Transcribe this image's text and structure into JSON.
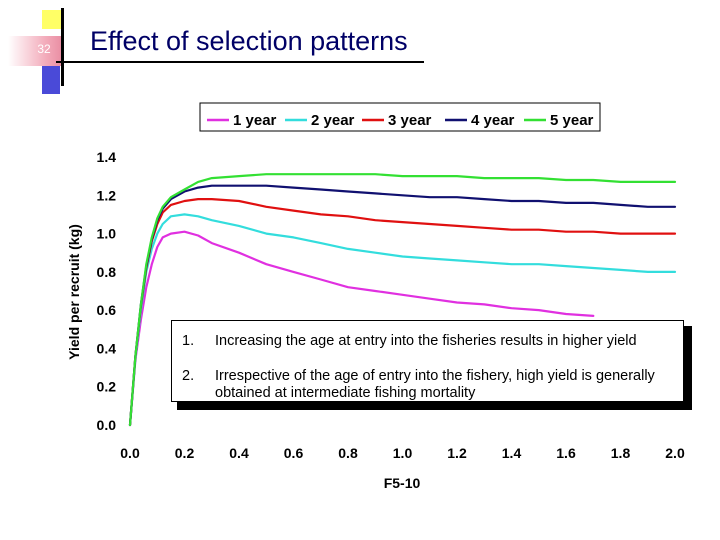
{
  "slide": {
    "number": "32",
    "title": "Effect of selection patterns"
  },
  "colors": {
    "title": "#000066",
    "series": [
      "#e030e0",
      "#33dddd",
      "#e01010",
      "#101070",
      "#33e033"
    ]
  },
  "chart_data": {
    "type": "line",
    "title": "",
    "xlabel": "F5-10",
    "ylabel": "Yield per recruit (kg)",
    "xlim": [
      0.0,
      2.0
    ],
    "ylim": [
      0.0,
      1.4
    ],
    "x_ticks": [
      "0.0",
      "0.2",
      "0.4",
      "0.6",
      "0.8",
      "1.0",
      "1.2",
      "1.4",
      "1.6",
      "1.8",
      "2.0"
    ],
    "y_ticks": [
      "0.0",
      "0.2",
      "0.4",
      "0.6",
      "0.8",
      "1.0",
      "1.2",
      "1.4"
    ],
    "legend_position": "top",
    "grid": false,
    "series": [
      {
        "name": "1 year",
        "color": "#e030e0",
        "points": [
          [
            0,
            0
          ],
          [
            0.02,
            0.34
          ],
          [
            0.04,
            0.55
          ],
          [
            0.06,
            0.72
          ],
          [
            0.08,
            0.84
          ],
          [
            0.1,
            0.93
          ],
          [
            0.12,
            0.98
          ],
          [
            0.15,
            1.0
          ],
          [
            0.2,
            1.01
          ],
          [
            0.25,
            0.99
          ],
          [
            0.3,
            0.95
          ],
          [
            0.4,
            0.9
          ],
          [
            0.5,
            0.84
          ],
          [
            0.6,
            0.8
          ],
          [
            0.7,
            0.76
          ],
          [
            0.8,
            0.72
          ],
          [
            0.9,
            0.7
          ],
          [
            1.0,
            0.68
          ],
          [
            1.1,
            0.66
          ],
          [
            1.2,
            0.64
          ],
          [
            1.3,
            0.63
          ],
          [
            1.4,
            0.61
          ],
          [
            1.5,
            0.6
          ],
          [
            1.6,
            0.58
          ],
          [
            1.7,
            0.57
          ]
        ]
      },
      {
        "name": "2 year",
        "color": "#33dddd",
        "points": [
          [
            0,
            0
          ],
          [
            0.02,
            0.35
          ],
          [
            0.04,
            0.6
          ],
          [
            0.06,
            0.8
          ],
          [
            0.08,
            0.92
          ],
          [
            0.1,
            1.0
          ],
          [
            0.12,
            1.05
          ],
          [
            0.15,
            1.09
          ],
          [
            0.2,
            1.1
          ],
          [
            0.25,
            1.09
          ],
          [
            0.3,
            1.07
          ],
          [
            0.4,
            1.04
          ],
          [
            0.5,
            1.0
          ],
          [
            0.6,
            0.98
          ],
          [
            0.7,
            0.95
          ],
          [
            0.8,
            0.92
          ],
          [
            0.9,
            0.9
          ],
          [
            1.0,
            0.88
          ],
          [
            1.1,
            0.87
          ],
          [
            1.2,
            0.86
          ],
          [
            1.3,
            0.85
          ],
          [
            1.4,
            0.84
          ],
          [
            1.5,
            0.84
          ],
          [
            1.6,
            0.83
          ],
          [
            1.7,
            0.82
          ],
          [
            1.8,
            0.81
          ],
          [
            1.9,
            0.8
          ],
          [
            2.0,
            0.8
          ]
        ]
      },
      {
        "name": "3 year",
        "color": "#e01010",
        "points": [
          [
            0,
            0
          ],
          [
            0.02,
            0.36
          ],
          [
            0.04,
            0.62
          ],
          [
            0.06,
            0.82
          ],
          [
            0.08,
            0.96
          ],
          [
            0.1,
            1.05
          ],
          [
            0.12,
            1.11
          ],
          [
            0.15,
            1.15
          ],
          [
            0.2,
            1.17
          ],
          [
            0.25,
            1.18
          ],
          [
            0.3,
            1.18
          ],
          [
            0.4,
            1.17
          ],
          [
            0.5,
            1.14
          ],
          [
            0.6,
            1.12
          ],
          [
            0.7,
            1.1
          ],
          [
            0.8,
            1.09
          ],
          [
            0.9,
            1.07
          ],
          [
            1.0,
            1.06
          ],
          [
            1.1,
            1.05
          ],
          [
            1.2,
            1.04
          ],
          [
            1.3,
            1.03
          ],
          [
            1.4,
            1.02
          ],
          [
            1.5,
            1.02
          ],
          [
            1.6,
            1.01
          ],
          [
            1.7,
            1.01
          ],
          [
            1.8,
            1.0
          ],
          [
            1.9,
            1.0
          ],
          [
            2.0,
            1.0
          ]
        ]
      },
      {
        "name": "4 year",
        "color": "#101070",
        "points": [
          [
            0,
            0
          ],
          [
            0.02,
            0.36
          ],
          [
            0.04,
            0.63
          ],
          [
            0.06,
            0.83
          ],
          [
            0.08,
            0.97
          ],
          [
            0.1,
            1.07
          ],
          [
            0.12,
            1.13
          ],
          [
            0.15,
            1.18
          ],
          [
            0.2,
            1.22
          ],
          [
            0.25,
            1.24
          ],
          [
            0.3,
            1.25
          ],
          [
            0.4,
            1.25
          ],
          [
            0.5,
            1.25
          ],
          [
            0.6,
            1.24
          ],
          [
            0.7,
            1.23
          ],
          [
            0.8,
            1.22
          ],
          [
            0.9,
            1.21
          ],
          [
            1.0,
            1.2
          ],
          [
            1.1,
            1.19
          ],
          [
            1.2,
            1.19
          ],
          [
            1.3,
            1.18
          ],
          [
            1.4,
            1.17
          ],
          [
            1.5,
            1.17
          ],
          [
            1.6,
            1.16
          ],
          [
            1.7,
            1.16
          ],
          [
            1.8,
            1.15
          ],
          [
            1.9,
            1.14
          ],
          [
            2.0,
            1.14
          ]
        ]
      },
      {
        "name": "5 year",
        "color": "#33e033",
        "points": [
          [
            0,
            0
          ],
          [
            0.02,
            0.36
          ],
          [
            0.04,
            0.63
          ],
          [
            0.06,
            0.84
          ],
          [
            0.08,
            0.98
          ],
          [
            0.1,
            1.08
          ],
          [
            0.12,
            1.14
          ],
          [
            0.15,
            1.19
          ],
          [
            0.2,
            1.23
          ],
          [
            0.25,
            1.27
          ],
          [
            0.3,
            1.29
          ],
          [
            0.4,
            1.3
          ],
          [
            0.5,
            1.31
          ],
          [
            0.6,
            1.31
          ],
          [
            0.7,
            1.31
          ],
          [
            0.8,
            1.31
          ],
          [
            0.9,
            1.31
          ],
          [
            1.0,
            1.3
          ],
          [
            1.1,
            1.3
          ],
          [
            1.2,
            1.3
          ],
          [
            1.3,
            1.29
          ],
          [
            1.4,
            1.29
          ],
          [
            1.5,
            1.29
          ],
          [
            1.6,
            1.28
          ],
          [
            1.7,
            1.28
          ],
          [
            1.8,
            1.27
          ],
          [
            1.9,
            1.27
          ],
          [
            2.0,
            1.27
          ]
        ]
      }
    ]
  },
  "notes": [
    {
      "number": "1.",
      "text": "Increasing the age at entry into the fisheries results in higher yield"
    },
    {
      "number": "2.",
      "text": "Irrespective of the age of entry into the fishery, high yield is generally obtained at intermediate fishing mortality"
    }
  ]
}
